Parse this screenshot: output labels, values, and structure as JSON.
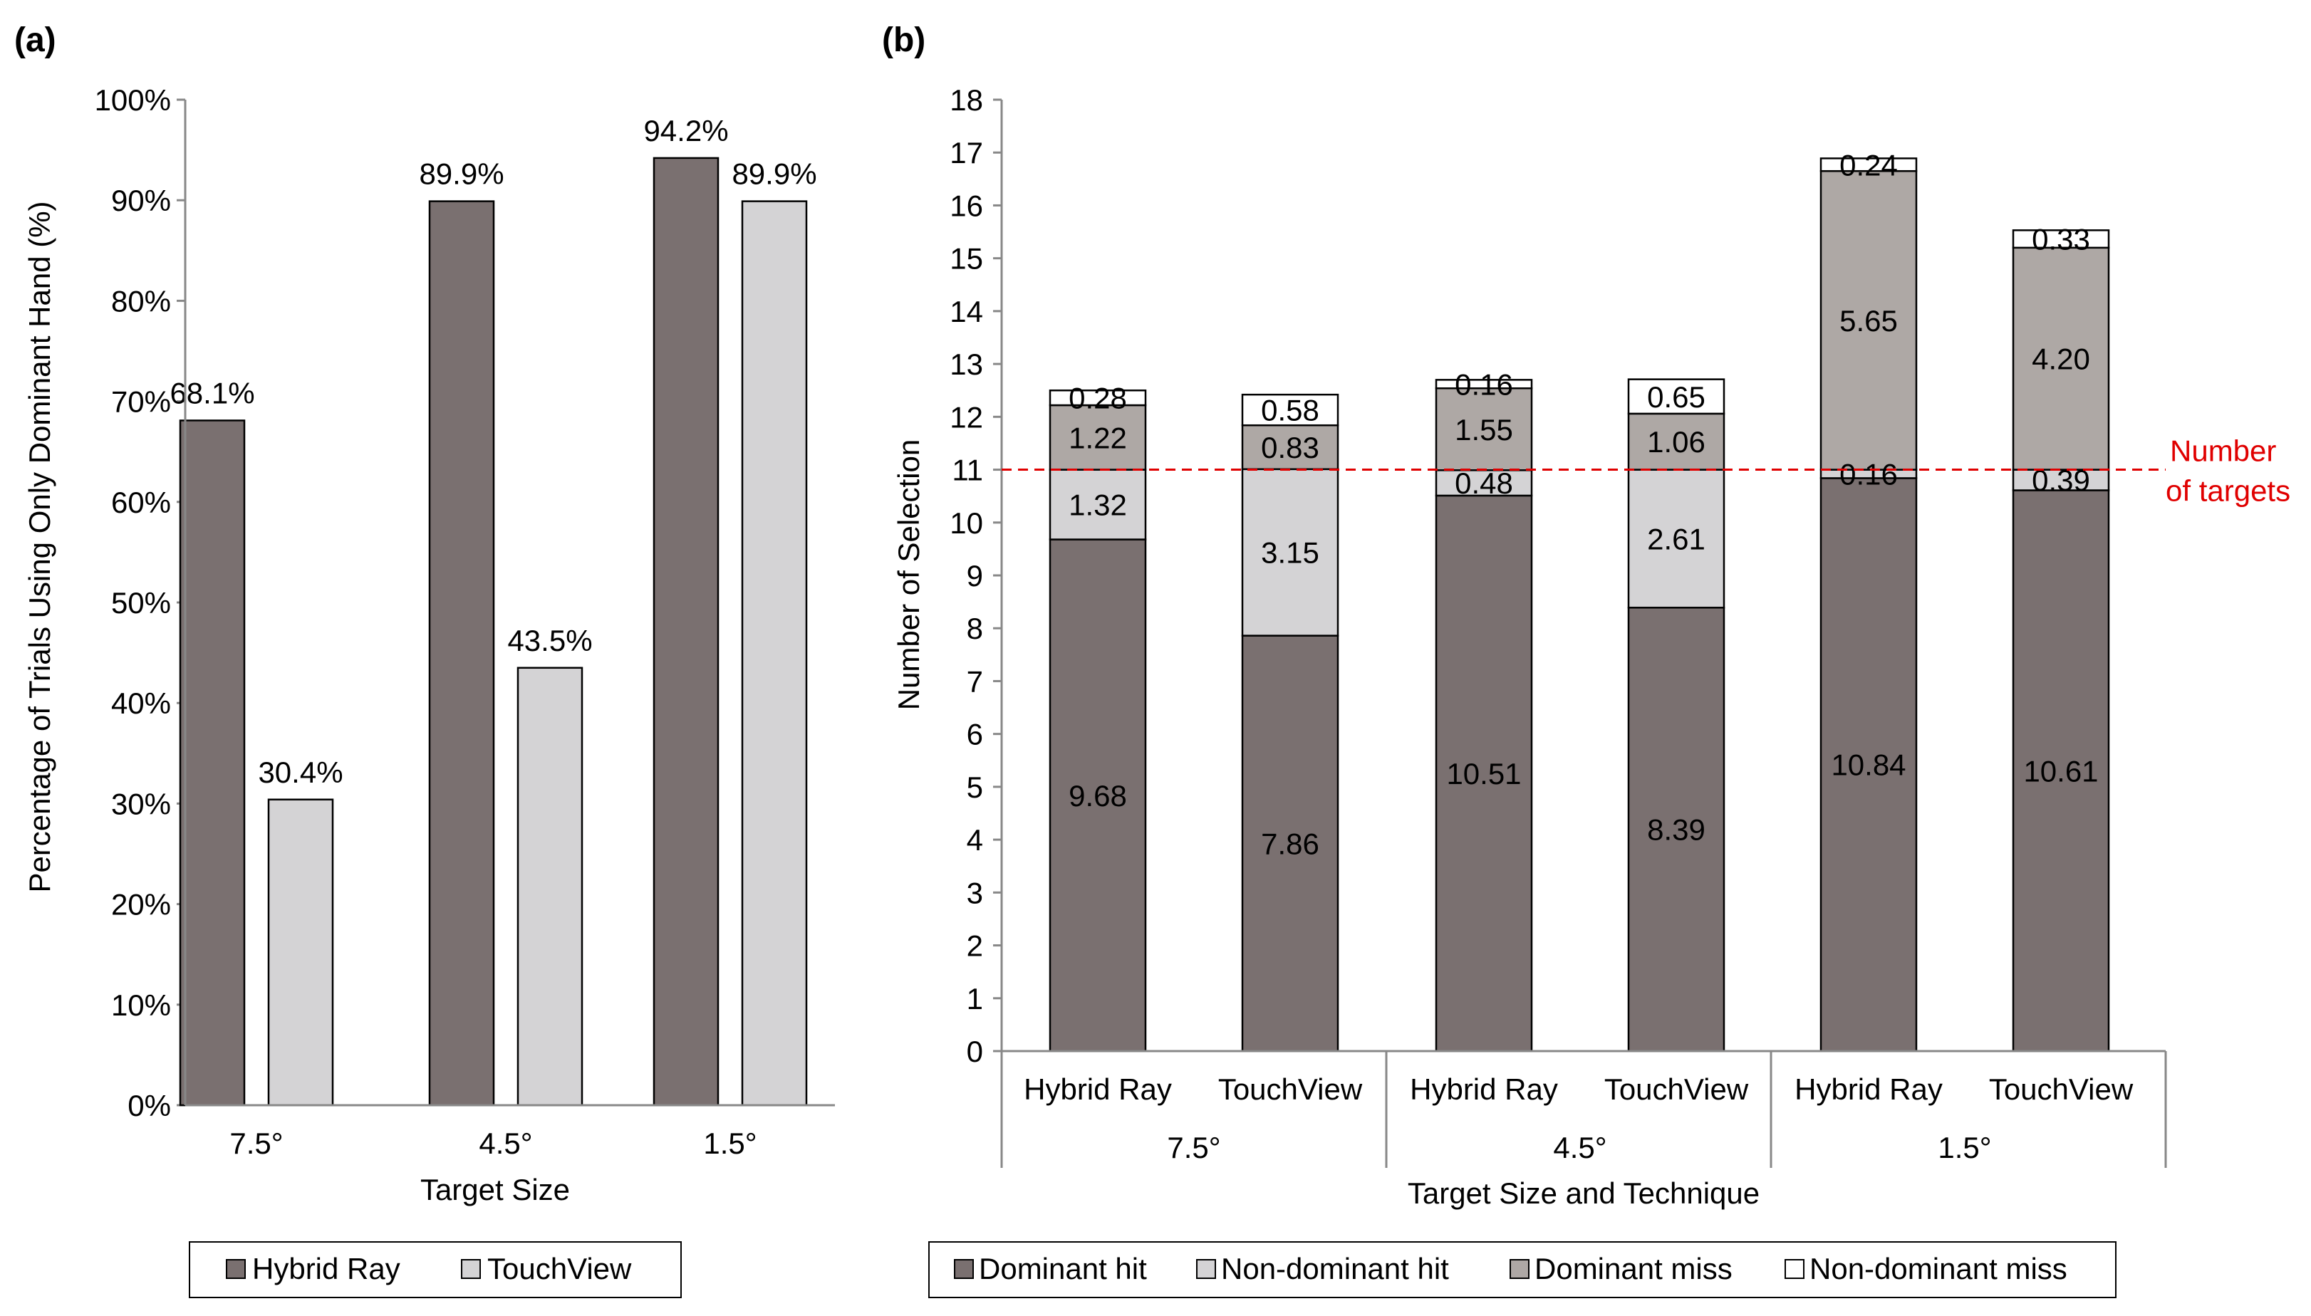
{
  "panels": {
    "a": {
      "label": "(a)"
    },
    "b": {
      "label": "(b)"
    }
  },
  "colors": {
    "hybrid_ray": "#7a7070",
    "touchview": "#d4d3d5",
    "dominant_hit": "#7a7070",
    "non_dominant_hit": "#d4d3d5",
    "dominant_miss": "#aea8a5",
    "non_dominant_miss": "#ffffff",
    "reference_line": "#e00000"
  },
  "chart_data": [
    {
      "type": "bar",
      "title": "",
      "xlabel": "Target Size",
      "ylabel": "Percentage of Trials Using Only Dominant Hand (%)",
      "ylim": [
        0,
        100
      ],
      "ytick_step": 10,
      "ytick_labels": [
        "0%",
        "10%",
        "20%",
        "30%",
        "40%",
        "50%",
        "60%",
        "70%",
        "80%",
        "90%",
        "100%"
      ],
      "categories": [
        "7.5°",
        "4.5°",
        "1.5°"
      ],
      "series": [
        {
          "name": "Hybrid Ray",
          "values": [
            68.1,
            89.9,
            94.2
          ],
          "labels": [
            "68.1%",
            "89.9%",
            "94.2%"
          ]
        },
        {
          "name": "TouchView",
          "values": [
            30.4,
            43.5,
            89.9
          ],
          "labels": [
            "30.4%",
            "43.5%",
            "89.9%"
          ]
        }
      ],
      "legend": [
        "Hybrid Ray",
        "TouchView"
      ],
      "legend_position": "bottom",
      "grid": false
    },
    {
      "type": "bar",
      "stacked": true,
      "title": "",
      "xlabel": "Target Size and Technique",
      "ylabel": "Number of Selection",
      "ylim": [
        0,
        18
      ],
      "ytick_step": 1,
      "ytick_labels": [
        "0",
        "1",
        "2",
        "3",
        "4",
        "5",
        "6",
        "7",
        "8",
        "9",
        "10",
        "11",
        "12",
        "13",
        "14",
        "15",
        "16",
        "17",
        "18"
      ],
      "categories": [
        "Hybrid Ray",
        "TouchView",
        "Hybrid Ray",
        "TouchView",
        "Hybrid Ray",
        "TouchView"
      ],
      "groups": [
        "7.5°",
        "4.5°",
        "1.5°"
      ],
      "series": [
        {
          "name": "Dominant hit",
          "values": [
            9.68,
            7.86,
            10.51,
            8.39,
            10.84,
            10.61
          ],
          "labels": [
            "9.68",
            "7.86",
            "10.51",
            "8.39",
            "10.84",
            "10.61"
          ]
        },
        {
          "name": "Non-dominant hit",
          "values": [
            1.32,
            3.15,
            0.48,
            2.61,
            0.16,
            0.39
          ],
          "labels": [
            "1.32",
            "3.15",
            "0.48",
            "2.61",
            "0.16",
            "0.39"
          ]
        },
        {
          "name": "Dominant miss",
          "values": [
            1.22,
            0.83,
            1.55,
            1.06,
            5.65,
            4.2
          ],
          "labels": [
            "1.22",
            "0.83",
            "1.55",
            "1.06",
            "5.65",
            "4.20"
          ]
        },
        {
          "name": "Non-dominant miss",
          "values": [
            0.28,
            0.58,
            0.16,
            0.65,
            0.24,
            0.33
          ],
          "labels": [
            "0.28",
            "0.58",
            "0.16",
            "0.65",
            "0.24",
            "0.33"
          ]
        }
      ],
      "reference_line": {
        "value": 11,
        "label_line1": "Number",
        "label_line2": "of targets",
        "style": "dashed"
      },
      "legend": [
        "Dominant hit",
        "Non-dominant hit",
        "Dominant miss",
        "Non-dominant miss"
      ],
      "legend_position": "bottom",
      "grid": false
    }
  ]
}
